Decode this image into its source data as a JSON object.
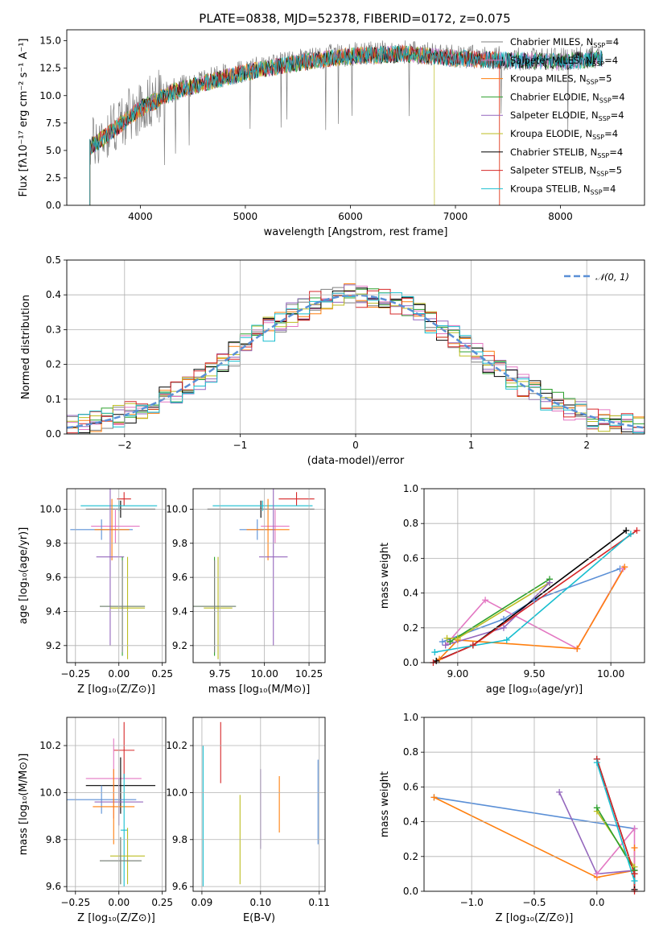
{
  "figure": {
    "title": "PLATE=0838, MJD=52378, FIBERID=0172, z=0.075",
    "colors": [
      "#7f7f7f",
      "#e377c2",
      "#ff7f0e",
      "#2ca02c",
      "#9467bd",
      "#bcbd22",
      "#000000",
      "#d62728",
      "#17becf"
    ]
  },
  "chart_data": [
    {
      "id": "spectrum",
      "type": "line",
      "xlabel": "wavelength [Angstrom, rest frame]",
      "ylabel": "Flux [fλ10⁻¹⁷ erg cm⁻² s⁻¹ A⁻¹]",
      "xlim": [
        3300,
        8800
      ],
      "ylim": [
        0,
        16
      ],
      "xticks": [
        "4000",
        "5000",
        "6000",
        "7000",
        "8000"
      ],
      "yticks": [
        "0.0",
        "2.5",
        "5.0",
        "7.5",
        "10.0",
        "12.5",
        "15.0"
      ],
      "legend_position": "right",
      "legend": [
        {
          "label": "Chabrier MILES, N",
          "sub": "SSP",
          "tail": "=4",
          "color": "#7f7f7f"
        },
        {
          "label": "Salpeter MILES, N",
          "sub": "SSP",
          "tail": "=4",
          "color": "#e377c2"
        },
        {
          "label": "Kroupa MILES, N",
          "sub": "SSP",
          "tail": "=5",
          "color": "#ff7f0e"
        },
        {
          "label": "Chabrier ELODIE, N",
          "sub": "SSP",
          "tail": "=4",
          "color": "#2ca02c"
        },
        {
          "label": "Salpeter ELODIE, N",
          "sub": "SSP",
          "tail": "=4",
          "color": "#9467bd"
        },
        {
          "label": "Kroupa ELODIE, N",
          "sub": "SSP",
          "tail": "=4",
          "color": "#bcbd22"
        },
        {
          "label": "Chabrier STELIB, N",
          "sub": "SSP",
          "tail": "=4",
          "color": "#000000"
        },
        {
          "label": "Salpeter STELIB, N",
          "sub": "SSP",
          "tail": "=5",
          "color": "#d62728"
        },
        {
          "label": "Kroupa STELIB, N",
          "sub": "SSP",
          "tail": "=4",
          "color": "#17becf"
        }
      ],
      "continuum": {
        "x": [
          3520,
          3600,
          3800,
          4000,
          4300,
          4700,
          5000,
          5500,
          6000,
          6500,
          7000,
          7500,
          8000,
          8400
        ],
        "y": [
          5.5,
          6.0,
          7.5,
          9.0,
          10.5,
          11.6,
          12.3,
          13.2,
          13.8,
          14.0,
          13.6,
          13.4,
          13.3,
          13.6
        ]
      }
    },
    {
      "id": "residuals",
      "type": "line",
      "xlabel": "(data-model)/error",
      "ylabel": "Normed distribution",
      "xlim": [
        -2.5,
        2.5
      ],
      "ylim": [
        0,
        0.5
      ],
      "xticks": [
        "−2",
        "−1",
        "0",
        "1",
        "2"
      ],
      "yticks": [
        "0.0",
        "0.1",
        "0.2",
        "0.3",
        "0.4",
        "0.5"
      ],
      "legend_position": "top-right",
      "legend_label": "𝒩(0, 1)",
      "gauss_color": "#5a8fd6",
      "bin_width": 0.1
    },
    {
      "id": "age-vs-z",
      "type": "scatter",
      "xlabel": "Z [log₁₀(Z/Z⊙)]",
      "ylabel": "age  [log₁₀(age/yr)]",
      "xlim": [
        -0.3,
        0.27
      ],
      "ylim": [
        9.1,
        10.12
      ],
      "xticks": [
        -0.25,
        0.0,
        0.25
      ],
      "xticklabels": [
        "−0.25",
        "0.00",
        "0.25"
      ],
      "yticks": [
        9.2,
        9.4,
        9.6,
        9.8,
        10.0
      ],
      "yticklabels": [
        "9.2",
        "9.4",
        "9.6",
        "9.8",
        "10.0"
      ],
      "points": [
        {
          "x": 0.03,
          "y": 10.06,
          "xerr": 0.04,
          "yerr": 0.04,
          "c": "#d62728"
        },
        {
          "x": 0.01,
          "y": 10.0,
          "xerr": 0.2,
          "yerr": 0.05,
          "c": "#000000"
        },
        {
          "x": 0.0,
          "y": 10.02,
          "xerr": 0.22,
          "yerr": 0.03,
          "c": "#17becf"
        },
        {
          "x": -0.02,
          "y": 9.9,
          "xerr": 0.14,
          "yerr": 0.1,
          "c": "#e377c2"
        },
        {
          "x": -0.1,
          "y": 9.88,
          "xerr": 0.18,
          "yerr": 0.06,
          "c": "#5a8fd6"
        },
        {
          "x": -0.04,
          "y": 9.88,
          "xerr": 0.1,
          "yerr": 0.18,
          "c": "#ff7f0e"
        },
        {
          "x": -0.05,
          "y": 9.72,
          "xerr": 0.08,
          "yerr": 0.52,
          "c": "#9467bd"
        },
        {
          "x": 0.05,
          "y": 9.42,
          "xerr": 0.1,
          "yerr": 0.3,
          "c": "#bcbd22"
        },
        {
          "x": 0.02,
          "y": 9.43,
          "xerr": 0.13,
          "yerr": 0.29,
          "c": "#2ca02c"
        },
        {
          "x": 0.02,
          "y": 9.43,
          "xerr": 0.13,
          "yerr": 0.27,
          "c": "#7f7f7f"
        }
      ]
    },
    {
      "id": "age-vs-mass",
      "type": "scatter",
      "xlabel": "mass [log₁₀(M/M⊙)]",
      "ylabel": "",
      "xlim": [
        9.6,
        10.34
      ],
      "ylim": [
        9.1,
        10.12
      ],
      "xticks": [
        9.75,
        10.0,
        10.25
      ],
      "xticklabels": [
        "9.75",
        "10.00",
        "10.25"
      ],
      "yticks": [
        9.2,
        9.4,
        9.6,
        9.8,
        10.0
      ],
      "yticklabels": [
        "9.2",
        "9.4",
        "9.6",
        "9.8",
        "10.0"
      ],
      "points": [
        {
          "x": 10.18,
          "y": 10.06,
          "xerr": 0.1,
          "yerr": 0.04,
          "c": "#d62728"
        },
        {
          "x": 9.98,
          "y": 10.0,
          "xerr": 0.3,
          "yerr": 0.05,
          "c": "#000000"
        },
        {
          "x": 9.99,
          "y": 10.02,
          "xerr": 0.28,
          "yerr": 0.03,
          "c": "#17becf"
        },
        {
          "x": 10.06,
          "y": 9.9,
          "xerr": 0.08,
          "yerr": 0.1,
          "c": "#e377c2"
        },
        {
          "x": 9.96,
          "y": 9.88,
          "xerr": 0.1,
          "yerr": 0.06,
          "c": "#5a8fd6"
        },
        {
          "x": 10.02,
          "y": 9.88,
          "xerr": 0.12,
          "yerr": 0.18,
          "c": "#ff7f0e"
        },
        {
          "x": 10.05,
          "y": 9.72,
          "xerr": 0.08,
          "yerr": 0.52,
          "c": "#9467bd"
        },
        {
          "x": 9.74,
          "y": 9.42,
          "xerr": 0.08,
          "yerr": 0.3,
          "c": "#bcbd22"
        },
        {
          "x": 9.72,
          "y": 9.43,
          "xerr": 0.12,
          "yerr": 0.29,
          "c": "#2ca02c"
        },
        {
          "x": 9.72,
          "y": 9.43,
          "xerr": 0.12,
          "yerr": 0.27,
          "c": "#7f7f7f"
        }
      ]
    },
    {
      "id": "weight-vs-age",
      "type": "line",
      "xlabel": "age  [log₁₀(age/yr)]",
      "ylabel": "mass weight",
      "xlim": [
        8.78,
        10.22
      ],
      "ylim": [
        0,
        1.0
      ],
      "xticks": [
        9.0,
        9.5,
        10.0
      ],
      "xticklabels": [
        "9.00",
        "9.50",
        "10.00"
      ],
      "yticks": [
        0,
        0.2,
        0.4,
        0.6,
        0.8,
        1.0
      ],
      "yticklabels": [
        "0.0",
        "0.2",
        "0.4",
        "0.6",
        "0.8",
        "1.0"
      ],
      "series": [
        {
          "c": "#5a8fd6",
          "x": [
            8.9,
            9.3,
            9.5,
            10.06
          ],
          "y": [
            0.12,
            0.25,
            0.36,
            0.54
          ]
        },
        {
          "c": "#e377c2",
          "x": [
            8.92,
            9.18,
            9.78,
            10.08
          ],
          "y": [
            0.1,
            0.36,
            0.08,
            0.54
          ]
        },
        {
          "c": "#ff7f0e",
          "x": [
            8.88,
            9.0,
            9.78,
            10.09
          ],
          "y": [
            0.02,
            0.13,
            0.08,
            0.55
          ]
        },
        {
          "c": "#bcbd22",
          "x": [
            8.93,
            9.0,
            9.6
          ],
          "y": [
            0.14,
            0.14,
            0.46
          ]
        },
        {
          "c": "#2ca02c",
          "x": [
            8.95,
            9.6
          ],
          "y": [
            0.12,
            0.48
          ]
        },
        {
          "c": "#9467bd",
          "x": [
            8.92,
            9.3,
            9.6
          ],
          "y": [
            0.1,
            0.2,
            0.46
          ]
        },
        {
          "c": "#000000",
          "x": [
            8.86,
            9.1,
            10.1
          ],
          "y": [
            0.01,
            0.1,
            0.76
          ]
        },
        {
          "c": "#d62728",
          "x": [
            8.84,
            9.1,
            10.17
          ],
          "y": [
            0.0,
            0.1,
            0.76
          ]
        },
        {
          "c": "#17becf",
          "x": [
            8.85,
            9.32,
            10.13
          ],
          "y": [
            0.06,
            0.13,
            0.74
          ]
        }
      ]
    },
    {
      "id": "mass-vs-z",
      "type": "scatter",
      "xlabel": "Z [log₁₀(Z/Z⊙)]",
      "ylabel": "mass [log₁₀(M/M⊙)]",
      "xlim": [
        -0.3,
        0.27
      ],
      "ylim": [
        9.58,
        10.32
      ],
      "xticks": [
        -0.25,
        0.0,
        0.25
      ],
      "xticklabels": [
        "−0.25",
        "0.00",
        "0.25"
      ],
      "yticks": [
        9.6,
        9.8,
        10.0,
        10.2
      ],
      "yticklabels": [
        "9.6",
        "9.8",
        "10.0",
        "10.2"
      ],
      "points": [
        {
          "x": 0.03,
          "y": 10.18,
          "xerr": 0.06,
          "yerr": 0.12,
          "c": "#d62728"
        },
        {
          "x": -0.03,
          "y": 10.06,
          "xerr": 0.16,
          "yerr": 0.17,
          "c": "#e377c2"
        },
        {
          "x": 0.01,
          "y": 10.03,
          "xerr": 0.2,
          "yerr": 0.12,
          "c": "#000000"
        },
        {
          "x": -0.1,
          "y": 9.97,
          "xerr": 0.2,
          "yerr": 0.06,
          "c": "#5a8fd6"
        },
        {
          "x": 0.0,
          "y": 9.96,
          "xerr": 0.14,
          "yerr": 0.1,
          "c": "#9467bd"
        },
        {
          "x": -0.03,
          "y": 9.94,
          "xerr": 0.12,
          "yerr": 0.16,
          "c": "#ff7f0e"
        },
        {
          "x": 0.03,
          "y": 9.84,
          "xerr": 0.02,
          "yerr": 0.24,
          "c": "#17becf"
        },
        {
          "x": 0.05,
          "y": 9.73,
          "xerr": 0.1,
          "yerr": 0.12,
          "c": "#bcbd22"
        },
        {
          "x": 0.01,
          "y": 9.71,
          "xerr": 0.12,
          "yerr": 0.1,
          "c": "#2ca02c"
        },
        {
          "x": 0.01,
          "y": 9.71,
          "xerr": 0.12,
          "yerr": 0.1,
          "c": "#7f7f7f"
        }
      ]
    },
    {
      "id": "mass-vs-ebv",
      "type": "scatter",
      "xlabel": "E(B-V)",
      "ylabel": "",
      "xlim": [
        0.0885,
        0.111
      ],
      "ylim": [
        9.58,
        10.32
      ],
      "xticks": [
        0.09,
        0.1,
        0.11
      ],
      "xticklabels": [
        "0.09",
        "0.10",
        "0.11"
      ],
      "yticks": [
        9.6,
        9.8,
        10.0,
        10.2
      ],
      "yticklabels": [
        "9.6",
        "9.8",
        "10.0",
        "10.2"
      ],
      "points": [
        {
          "x": 0.0932,
          "y": 10.17,
          "xerr": 0,
          "yerr": 0.13,
          "c": "#d62728"
        },
        {
          "x": 0.0902,
          "y": 9.9,
          "xerr": 0,
          "yerr": 0.3,
          "c": "#17becf"
        },
        {
          "x": 0.0965,
          "y": 9.8,
          "xerr": 0,
          "yerr": 0.19,
          "c": "#bcbd22"
        },
        {
          "x": 0.1,
          "y": 9.93,
          "xerr": 0,
          "yerr": 0.17,
          "c": "#9467bd"
        },
        {
          "x": 0.1032,
          "y": 9.95,
          "xerr": 0,
          "yerr": 0.12,
          "c": "#ff7f0e"
        },
        {
          "x": 0.1098,
          "y": 9.96,
          "xerr": 0,
          "yerr": 0.18,
          "c": "#5a8fd6"
        }
      ]
    },
    {
      "id": "weight-vs-z",
      "type": "line",
      "xlabel": "Z [log₁₀(Z/Z⊙)]",
      "ylabel": "mass weight",
      "xlim": [
        -1.38,
        0.38
      ],
      "ylim": [
        0,
        1.0
      ],
      "xticks": [
        -1.0,
        -0.5,
        0.0
      ],
      "xticklabels": [
        "−1.0",
        "−0.5",
        "0.0"
      ],
      "yticks": [
        0,
        0.2,
        0.4,
        0.6,
        0.8,
        1.0
      ],
      "yticklabels": [
        "0.0",
        "0.2",
        "0.4",
        "0.6",
        "0.8",
        "1.0"
      ],
      "series": [
        {
          "c": "#5a8fd6",
          "x": [
            -1.3,
            0.3
          ],
          "y": [
            0.54,
            0.36
          ]
        },
        {
          "c": "#ff7f0e",
          "x": [
            -1.3,
            0.0,
            0.3,
            0.3
          ],
          "y": [
            0.54,
            0.08,
            0.12,
            0.25
          ]
        },
        {
          "c": "#9467bd",
          "x": [
            -0.3,
            0.0,
            0.3
          ],
          "y": [
            0.57,
            0.1,
            0.12
          ]
        },
        {
          "c": "#e377c2",
          "x": [
            0.0,
            0.3,
            0.3
          ],
          "y": [
            0.1,
            0.36,
            0.1
          ]
        },
        {
          "c": "#bcbd22",
          "x": [
            0.0,
            0.3
          ],
          "y": [
            0.46,
            0.14
          ]
        },
        {
          "c": "#2ca02c",
          "x": [
            0.0,
            0.3
          ],
          "y": [
            0.48,
            0.12
          ]
        },
        {
          "c": "#000000",
          "x": [
            0.0,
            0.3,
            0.3
          ],
          "y": [
            0.76,
            0.1,
            0.01
          ]
        },
        {
          "c": "#d62728",
          "x": [
            0.0,
            0.3,
            0.3
          ],
          "y": [
            0.76,
            0.1,
            0.0
          ]
        },
        {
          "c": "#17becf",
          "x": [
            0.0,
            0.3
          ],
          "y": [
            0.74,
            0.06
          ]
        }
      ]
    }
  ]
}
